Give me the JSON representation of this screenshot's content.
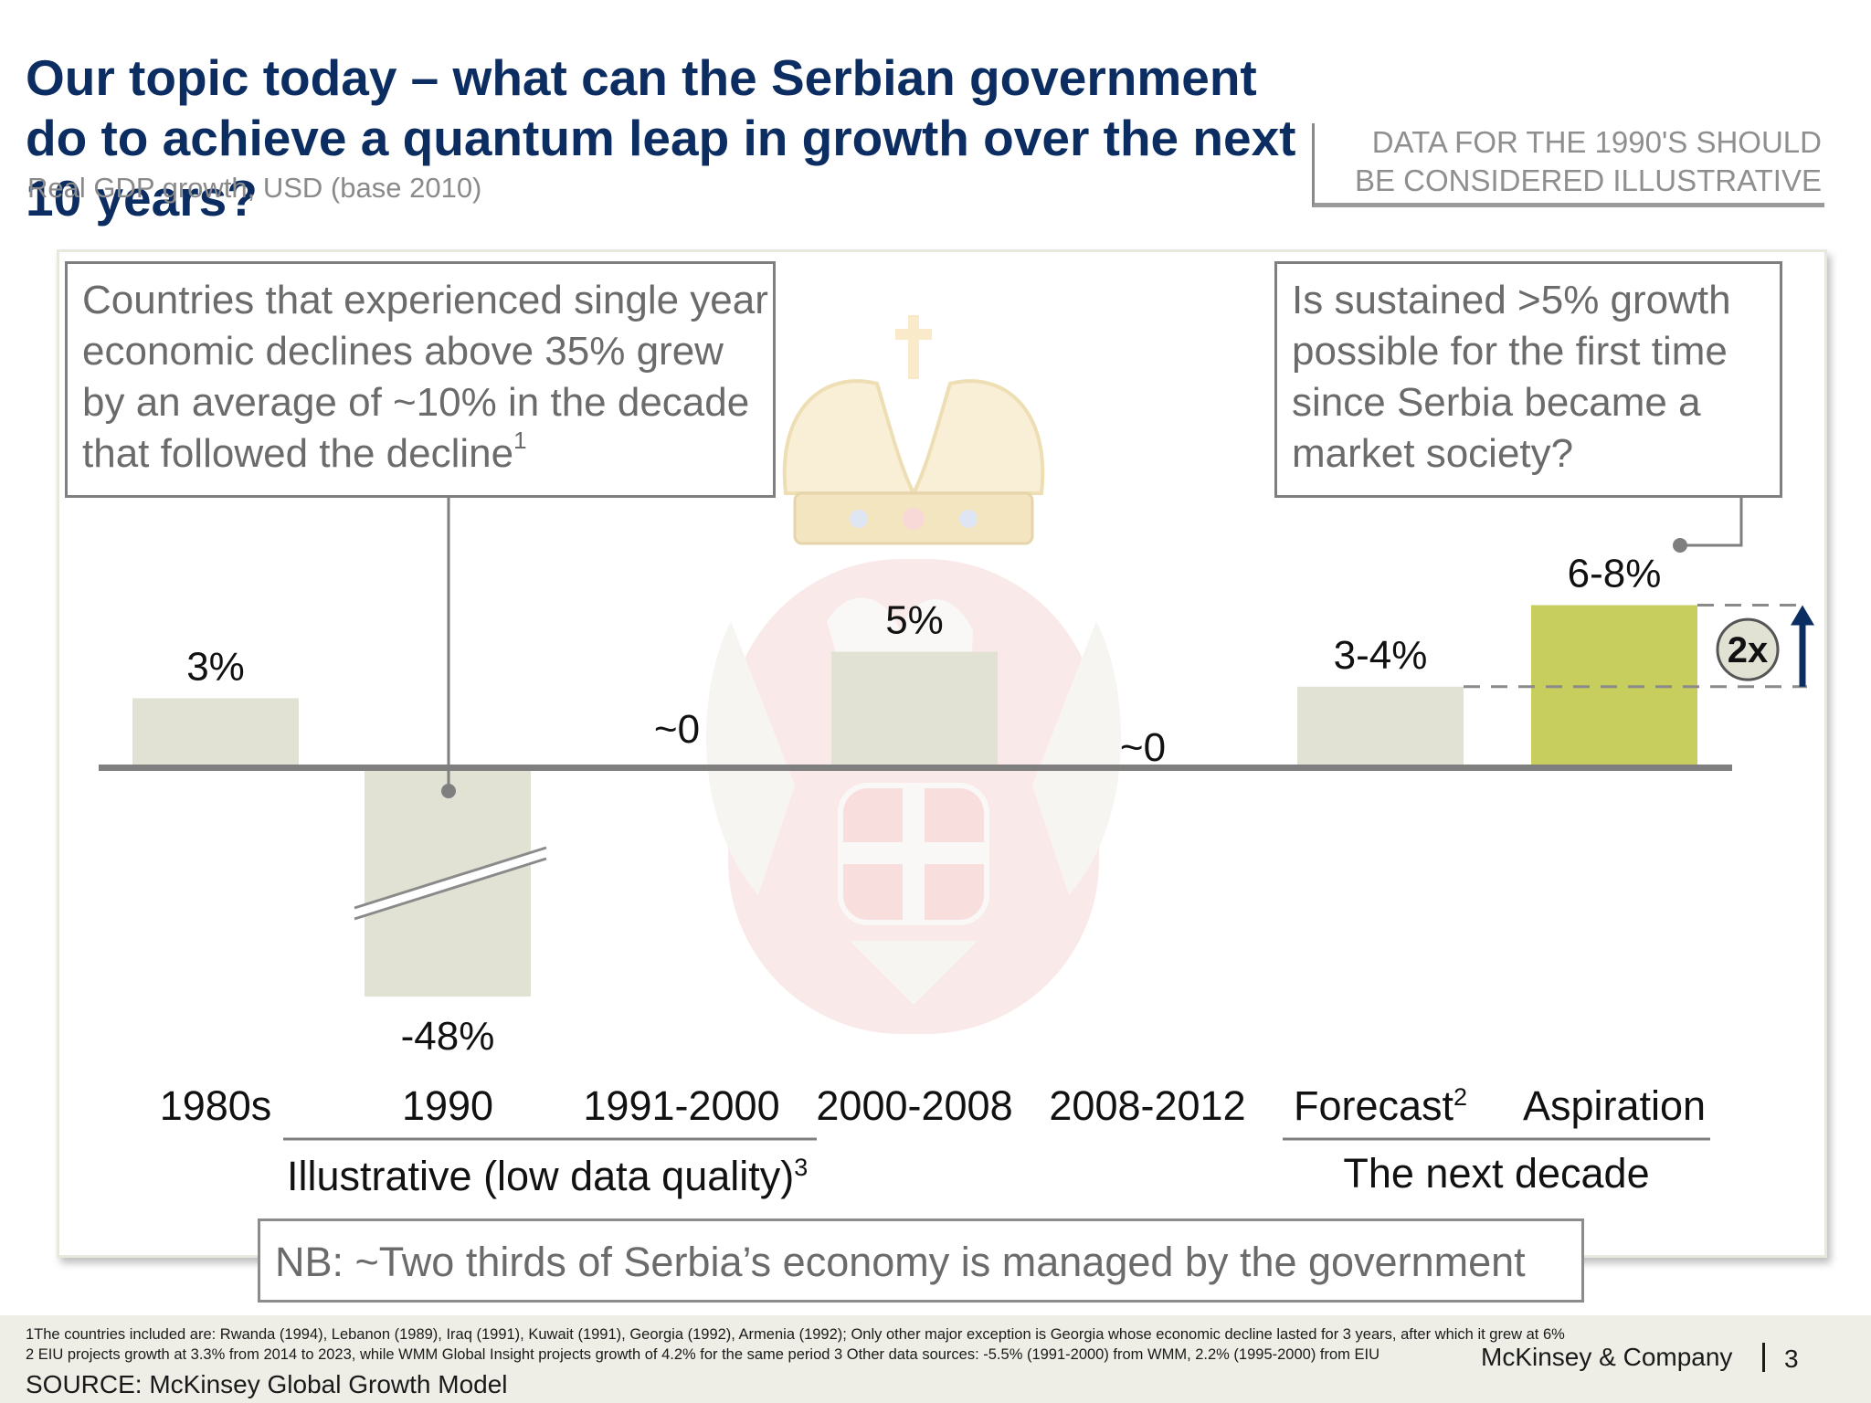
{
  "header": {
    "title": "Our topic today – what can the Serbian government do to achieve a quantum leap in growth over the next 10 years?",
    "subtitle": "Real GDP growth, USD (base 2010)",
    "disclaimer_line1": "DATA FOR THE 1990'S SHOULD",
    "disclaimer_line2": "BE CONSIDERED ILLUSTRATIVE"
  },
  "callouts": {
    "left_text": "Countries that experienced single year economic declines above 35% grew by an average of ~10% in the decade that followed the decline",
    "left_sup": "1",
    "right_text": "Is sustained >5% growth possible for the first time since Serbia became a market society?"
  },
  "chart_data": {
    "type": "bar",
    "title": "",
    "categories": [
      "1980s",
      "1990",
      "1991-2000",
      "2000-2008",
      "2008-2012",
      "Forecast",
      "Aspiration"
    ],
    "category_superscripts": [
      "",
      "",
      "",
      "",
      "",
      "2",
      ""
    ],
    "values": [
      3,
      -48,
      0,
      5,
      0,
      3.5,
      7
    ],
    "data_labels": [
      "3%",
      "-48%",
      "~0",
      "5%",
      "~0",
      "3-4%",
      "6-8%"
    ],
    "axis_break": "1990",
    "groups": [
      {
        "label": "Illustrative (low data quality)",
        "sup": "3",
        "categories": [
          "1990",
          "1991-2000"
        ]
      },
      {
        "label": "The next decade",
        "sup": "",
        "categories": [
          "Forecast",
          "Aspiration"
        ]
      }
    ],
    "comparison_label": "2x",
    "colors": {
      "bar": "#e2e2d4",
      "highlight": "#c8ce5e",
      "axis": "#7f7f7f",
      "arrow": "#0c2d62"
    }
  },
  "note": "NB: ~Two thirds of Serbia’s economy is managed by the government",
  "footer": {
    "footnote1": "1The countries included are: Rwanda (1994), Lebanon (1989), Iraq (1991), Kuwait (1991), Georgia (1992), Armenia (1992); Only other major exception is Georgia whose economic decline lasted for 3 years, after which it grew at 6%",
    "footnote2": "2 EIU projects growth at 3.3% from 2014 to 2023, while WMM Global Insight projects growth of 4.2% for the same period      3 Other data sources: -5.5% (1991-2000) from WMM, 2.2% (1995-2000) from EIU",
    "source": "SOURCE: McKinsey Global Growth Model",
    "brand": "McKinsey & Company",
    "page": "3"
  }
}
